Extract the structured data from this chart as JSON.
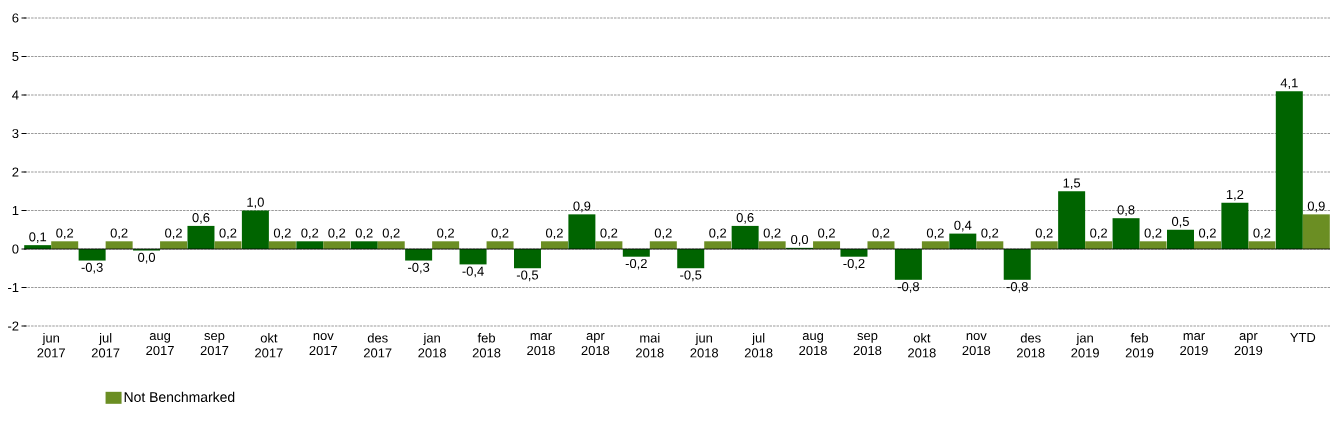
{
  "chart_data": {
    "type": "bar",
    "categories": [
      "jun 2017",
      "jul 2017",
      "aug 2017",
      "sep 2017",
      "okt 2017",
      "nov 2017",
      "des 2017",
      "jan 2018",
      "feb 2018",
      "mar 2018",
      "apr 2018",
      "mai 2018",
      "jun 2018",
      "jul 2018",
      "aug 2018",
      "sep 2018",
      "okt 2018",
      "nov 2018",
      "des 2018",
      "jan 2019",
      "feb 2019",
      "mar 2019",
      "apr 2019",
      "YTD"
    ],
    "series": [
      {
        "color": "#006400",
        "values": [
          0.1,
          -0.3,
          -0.04,
          0.6,
          1.0,
          0.2,
          0.2,
          -0.3,
          -0.4,
          -0.5,
          0.9,
          -0.2,
          -0.5,
          0.6,
          0.03,
          -0.2,
          -0.8,
          0.4,
          -0.8,
          1.5,
          0.8,
          0.5,
          1.2,
          4.1
        ],
        "value_labels": [
          "0,1",
          "-0,3",
          "0,0",
          "0,6",
          "1,0",
          "0,2",
          "0,2",
          "-0,3",
          "-0,4",
          "-0,5",
          "0,9",
          "-0,2",
          "-0,5",
          "0,6",
          "0,0",
          "-0,2",
          "-0,8",
          "0,4",
          "-0,8",
          "1,5",
          "0,8",
          "0,5",
          "1,2",
          "4,1"
        ]
      },
      {
        "name": "Not Benchmarked",
        "color": "#6b8e23",
        "values": [
          0.2,
          0.2,
          0.2,
          0.2,
          0.2,
          0.2,
          0.2,
          0.2,
          0.2,
          0.2,
          0.2,
          0.2,
          0.2,
          0.2,
          0.2,
          0.2,
          0.2,
          0.2,
          0.2,
          0.2,
          0.2,
          0.2,
          0.2,
          0.9
        ],
        "value_labels": [
          "0,2",
          "0,2",
          "0,2",
          "0,2",
          "0,2",
          "0,2",
          "0,2",
          "0,2",
          "0,2",
          "0,2",
          "0,2",
          "0,2",
          "0,2",
          "0,2",
          "0,2",
          "0,2",
          "0,2",
          "0,2",
          "0,2",
          "0,2",
          "0,2",
          "0,2",
          "0,2",
          "0,9"
        ]
      }
    ],
    "ylim": [
      -2,
      6
    ],
    "yticks": [
      -2,
      -1,
      0,
      1,
      2,
      3,
      4,
      5,
      6
    ],
    "grid": "y",
    "legend": "bottom"
  }
}
